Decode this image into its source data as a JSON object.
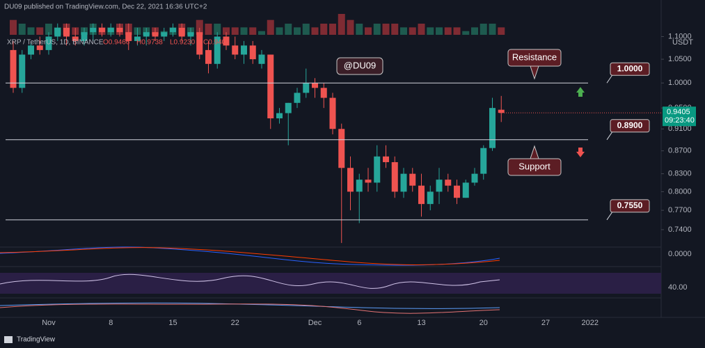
{
  "header": "DU09 published on TradingView.com, Dec 22, 2021 16:36 UTC+2",
  "footer": "TradingView",
  "chart_data": {
    "type": "candlestick",
    "title": "XRP / TetherUS, 1D, BINANCE",
    "legend_values": [
      "O0.9466",
      "H0.9738",
      "L0.9230",
      "C0.9405"
    ],
    "watermark": "@DU09",
    "categories": [
      null,
      null,
      null,
      null,
      "Nov",
      null,
      null,
      null,
      null,
      null,
      null,
      "8",
      null,
      null,
      null,
      null,
      null,
      null,
      "15",
      null,
      null,
      null,
      null,
      null,
      null,
      "22",
      null,
      null,
      null,
      null,
      null,
      null,
      null,
      null,
      "Dec",
      null,
      null,
      null,
      null,
      "6",
      null,
      null,
      null,
      null,
      null,
      null,
      "13",
      null,
      null,
      null,
      null,
      null,
      null,
      "20",
      null,
      null,
      null,
      null,
      null,
      null,
      "27",
      null,
      null,
      null,
      null,
      "2022"
    ],
    "open": [
      1.07,
      0.99,
      1.06,
      1.08,
      1.07,
      1.1,
      1.12,
      1.1,
      1.09,
      1.11,
      1.12,
      1.11,
      1.12,
      1.11,
      1.09,
      1.1,
      1.11,
      1.1,
      1.11,
      1.12,
      1.1,
      1.11,
      1.07,
      1.04,
      1.1,
      1.08,
      1.06,
      1.08,
      1.04,
      1.06,
      0.93,
      0.94,
      0.96,
      0.98,
      1.0,
      0.99,
      0.97,
      0.91,
      0.84,
      0.8,
      0.82,
      0.815,
      0.86,
      0.85,
      0.8,
      0.83,
      0.81,
      0.78,
      0.8,
      0.82,
      0.81,
      0.79,
      0.815,
      0.83,
      0.875,
      0.9466,
      null,
      null,
      null,
      null,
      null,
      null,
      null,
      null,
      null,
      null
    ],
    "high": [
      1.09,
      1.07,
      1.09,
      1.1,
      1.11,
      1.13,
      1.13,
      1.12,
      1.12,
      1.13,
      1.13,
      1.13,
      1.13,
      1.13,
      1.12,
      1.12,
      1.12,
      1.12,
      1.13,
      1.13,
      1.12,
      1.12,
      1.09,
      1.11,
      1.11,
      1.1,
      1.09,
      1.09,
      1.07,
      1.06,
      0.95,
      0.96,
      0.99,
      1.03,
      1.01,
      1.0,
      0.98,
      0.92,
      0.86,
      0.83,
      0.84,
      0.88,
      0.88,
      0.86,
      0.84,
      0.84,
      0.83,
      0.81,
      0.84,
      0.83,
      0.82,
      0.82,
      0.84,
      0.88,
      0.97,
      0.9738,
      null,
      null,
      null,
      null,
      null,
      null,
      null,
      null,
      null,
      null
    ],
    "low": [
      0.98,
      0.98,
      1.05,
      1.06,
      1.06,
      1.09,
      1.08,
      1.08,
      1.08,
      1.09,
      1.1,
      1.1,
      1.1,
      1.07,
      1.08,
      1.08,
      1.09,
      1.09,
      1.1,
      1.09,
      1.08,
      1.05,
      1.02,
      1.03,
      1.07,
      1.05,
      1.04,
      1.04,
      1.03,
      0.91,
      0.92,
      0.88,
      0.95,
      0.97,
      0.97,
      0.95,
      0.9,
      0.72,
      0.77,
      0.75,
      0.8,
      0.8,
      0.84,
      0.79,
      0.79,
      0.8,
      0.76,
      0.77,
      0.78,
      0.8,
      0.78,
      0.79,
      0.81,
      0.82,
      0.87,
      0.923,
      null,
      null,
      null,
      null,
      null,
      null,
      null,
      null,
      null,
      null
    ],
    "close": [
      0.99,
      1.06,
      1.08,
      1.07,
      1.1,
      1.12,
      1.1,
      1.09,
      1.11,
      1.12,
      1.11,
      1.12,
      1.11,
      1.09,
      1.1,
      1.11,
      1.1,
      1.11,
      1.12,
      1.1,
      1.11,
      1.06,
      1.04,
      1.1,
      1.08,
      1.06,
      1.08,
      1.05,
      1.06,
      0.93,
      0.94,
      0.96,
      0.98,
      1.0,
      0.99,
      0.97,
      0.91,
      0.84,
      0.8,
      0.82,
      0.815,
      0.86,
      0.85,
      0.8,
      0.83,
      0.81,
      0.78,
      0.8,
      0.82,
      0.81,
      0.79,
      0.815,
      0.83,
      0.875,
      0.95,
      0.9405,
      null,
      null,
      null,
      null,
      null,
      null,
      null,
      null,
      null,
      null
    ],
    "volume": [
      4,
      3,
      2,
      2,
      3,
      2,
      3,
      2,
      2,
      3,
      2,
      2,
      3,
      3,
      2,
      2,
      2,
      1,
      2,
      3,
      2,
      4,
      3,
      3,
      2,
      2,
      2,
      2,
      1,
      4,
      2,
      3,
      2,
      3,
      2,
      3,
      3,
      6,
      4,
      3,
      2,
      3,
      3,
      3,
      2,
      2,
      3,
      2,
      2,
      2,
      2,
      1,
      2,
      3,
      3,
      2,
      null,
      null,
      null,
      null,
      null,
      null,
      null,
      null,
      null,
      null
    ],
    "up_color": "#26a69a",
    "down_color": "#ef5350",
    "log_scale": true,
    "ylim": [
      0.714,
      1.136
    ],
    "yticks": [
      {
        "value": 1.1,
        "label": "1.1000"
      },
      {
        "value": 1.05,
        "label": "1.0500"
      },
      {
        "value": 1.0,
        "label": "1.0000"
      },
      {
        "value": 0.95,
        "label": "0.9500"
      },
      {
        "value": 0.91,
        "label": "0.9100"
      },
      {
        "value": 0.87,
        "label": "0.8700"
      },
      {
        "value": 0.83,
        "label": "0.8300"
      },
      {
        "value": 0.8,
        "label": "0.8000"
      },
      {
        "value": 0.77,
        "label": "0.7700"
      },
      {
        "value": 0.74,
        "label": "0.7400"
      }
    ],
    "currency": "USDT",
    "last_price": {
      "value": 0.9405,
      "label": "0.9405"
    },
    "countdown": "09:23:40",
    "levels": [
      {
        "value": 1.0,
        "label": "1.0000",
        "color": "#d1d4dc"
      },
      {
        "value": 0.89,
        "label": "0.8900",
        "color": "#d1d4dc"
      },
      {
        "value": 0.755,
        "label": "0.7550",
        "color": "#d1d4dc"
      }
    ],
    "annotations": [
      "Resistance",
      "Support"
    ],
    "indicator_labels": [
      "0.0000",
      "40.00"
    ]
  }
}
